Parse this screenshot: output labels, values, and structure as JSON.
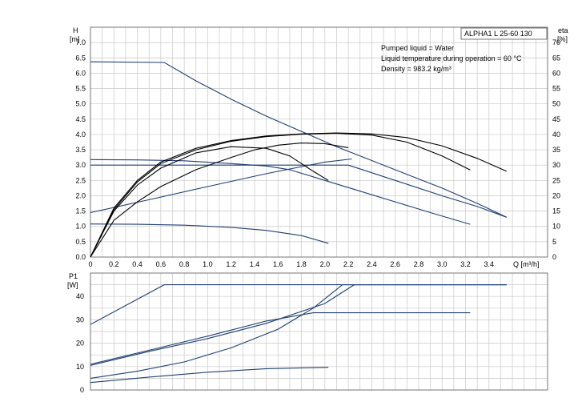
{
  "model_box": "ALPHA1 L 25-60 130",
  "info_lines": [
    "Pumped liquid = Water",
    "Liquid temperature during operation = 60 °C",
    "Density = 983.2 kg/m³"
  ],
  "colors": {
    "head": "#1f3f73",
    "eta": "#000000",
    "grid": "#c8c8c8"
  },
  "chart_data": [
    {
      "type": "line",
      "title": "",
      "ylabel_main": "H",
      "ylabel_unit": "[m]",
      "ylabel_right_main": "eta",
      "ylabel_right_unit": "[%]",
      "xlabel": "Q [m³/h]",
      "xlim": [
        0,
        3.9
      ],
      "ylim": [
        0,
        7.5
      ],
      "y2lim": [
        0,
        75
      ],
      "x_ticks": [
        "0",
        "0.2",
        "0.4",
        "0.6",
        "0.8",
        "1.0",
        "1.2",
        "1.4",
        "1.6",
        "1.8",
        "2.0",
        "2.2",
        "2.4",
        "2.6",
        "2.8",
        "3.0",
        "3.2",
        "3.4"
      ],
      "x_tick_values": [
        0,
        0.2,
        0.4,
        0.6,
        0.8,
        1.0,
        1.2,
        1.4,
        1.6,
        1.8,
        2.0,
        2.2,
        2.4,
        2.6,
        2.8,
        3.0,
        3.2,
        3.4
      ],
      "y_ticks": [
        "0.0",
        "0.5",
        "1.0",
        "1.5",
        "2.0",
        "2.5",
        "3.0",
        "3.5",
        "4.0",
        "4.5",
        "5.0",
        "5.5",
        "6.0",
        "6.5",
        "7.0"
      ],
      "y_tick_values": [
        0,
        0.5,
        1.0,
        1.5,
        2.0,
        2.5,
        3.0,
        3.5,
        4.0,
        4.5,
        5.0,
        5.5,
        6.0,
        6.5,
        7.0
      ],
      "y2_ticks": [
        "0",
        "5",
        "10",
        "15",
        "20",
        "25",
        "30",
        "35",
        "40",
        "45",
        "50",
        "55",
        "60",
        "65",
        "70"
      ],
      "y2_tick_values": [
        0,
        5,
        10,
        15,
        20,
        25,
        30,
        35,
        40,
        45,
        50,
        55,
        60,
        65,
        70
      ],
      "grid": true,
      "head_series": [
        {
          "x": [
            0,
            0.63,
            0.9,
            1.2,
            1.5,
            1.8,
            2.1,
            2.4,
            2.7,
            3.0,
            3.3,
            3.55
          ],
          "y": [
            6.37,
            6.35,
            5.75,
            5.15,
            4.6,
            4.1,
            3.6,
            3.15,
            2.7,
            2.25,
            1.75,
            1.3
          ]
        },
        {
          "x": [
            0,
            0.4,
            0.8,
            1.2,
            1.5,
            1.7,
            2.0,
            2.3,
            2.6,
            2.9,
            3.24
          ],
          "y": [
            3.18,
            3.17,
            3.14,
            3.05,
            2.97,
            2.85,
            2.5,
            2.15,
            1.8,
            1.45,
            1.07
          ]
        },
        {
          "x": [
            0,
            0.5,
            1.0,
            1.5,
            2.0,
            2.15,
            2.2
          ],
          "y": [
            3.0,
            3.0,
            3.0,
            3.0,
            3.0,
            3.0,
            3.0
          ]
        },
        {
          "x": [
            2.2,
            2.6,
            3.0,
            3.3,
            3.55
          ],
          "y": [
            3.0,
            2.5,
            2.0,
            1.65,
            1.3
          ]
        },
        {
          "x": [
            0,
            0.5,
            1.0,
            1.5,
            2.0,
            2.23
          ],
          "y": [
            1.45,
            1.87,
            2.3,
            2.72,
            3.1,
            3.2
          ]
        },
        {
          "x": [
            0,
            0.4,
            0.8,
            1.2,
            1.5,
            1.8,
            2.03
          ],
          "y": [
            1.08,
            1.07,
            1.04,
            0.97,
            0.87,
            0.7,
            0.45
          ]
        }
      ],
      "eta_series": [
        {
          "x": [
            0,
            0.2,
            0.4,
            0.6,
            0.9,
            1.2,
            1.5,
            1.8,
            2.1,
            2.4,
            2.7,
            3.0,
            3.3,
            3.55
          ],
          "y": [
            0,
            16,
            25,
            31,
            35.5,
            38,
            39.5,
            40.2,
            40.5,
            40.2,
            39,
            36.3,
            32.2,
            28
          ]
        },
        {
          "x": [
            0,
            0.2,
            0.4,
            0.6,
            0.9,
            1.2,
            1.5,
            1.8,
            2.1,
            2.4,
            2.7,
            3.0,
            3.24
          ],
          "y": [
            0,
            15.5,
            24.5,
            30.5,
            35,
            37.8,
            39.3,
            40.1,
            40.4,
            39.8,
            37.5,
            33,
            28.4
          ]
        },
        {
          "x": [
            0,
            0.2,
            0.4,
            0.6,
            0.9,
            1.2,
            1.5,
            1.7,
            1.9,
            2.03
          ],
          "y": [
            0,
            15,
            23.5,
            29,
            34,
            36,
            35.5,
            33,
            28,
            25
          ]
        },
        {
          "x": [
            0,
            0.2,
            0.4,
            0.6,
            0.9,
            1.2,
            1.4,
            1.6,
            1.8,
            2.0,
            2.2
          ],
          "y": [
            0,
            12,
            18,
            23,
            28.5,
            32.5,
            35,
            36.5,
            37.2,
            37,
            35.7
          ]
        }
      ]
    },
    {
      "type": "line",
      "title": "",
      "ylabel_main": "P1",
      "ylabel_unit": "[W]",
      "xlim": [
        0,
        3.9
      ],
      "ylim": [
        0,
        50
      ],
      "y_ticks": [
        "0",
        "10",
        "20",
        "30",
        "40"
      ],
      "y_tick_values": [
        0,
        10,
        20,
        30,
        40
      ],
      "grid": true,
      "series": [
        {
          "x": [
            0,
            0.63,
            1.0,
            1.5,
            2.0,
            2.5,
            3.0,
            3.55
          ],
          "y": [
            28,
            45,
            45,
            45,
            45,
            45,
            45,
            45
          ]
        },
        {
          "x": [
            0,
            0.5,
            1.0,
            1.5,
            1.9,
            2.5,
            3.0,
            3.24
          ],
          "y": [
            11,
            17,
            23,
            29.5,
            33,
            33,
            33,
            33
          ]
        },
        {
          "x": [
            0,
            0.5,
            1.0,
            1.5,
            2.0,
            2.25,
            2.6,
            3.0,
            3.55
          ],
          "y": [
            10.5,
            16.5,
            22,
            28.5,
            37,
            45,
            45,
            45,
            45
          ]
        },
        {
          "x": [
            0,
            0.4,
            0.8,
            1.2,
            1.6,
            1.9,
            2.15,
            2.5,
            3.0,
            3.55
          ],
          "y": [
            5,
            8,
            12,
            18,
            26,
            35,
            45,
            45,
            45,
            45
          ]
        },
        {
          "x": [
            0,
            0.5,
            1.0,
            1.5,
            2.03
          ],
          "y": [
            3.2,
            5.5,
            7.6,
            9.1,
            9.7
          ]
        }
      ]
    }
  ]
}
